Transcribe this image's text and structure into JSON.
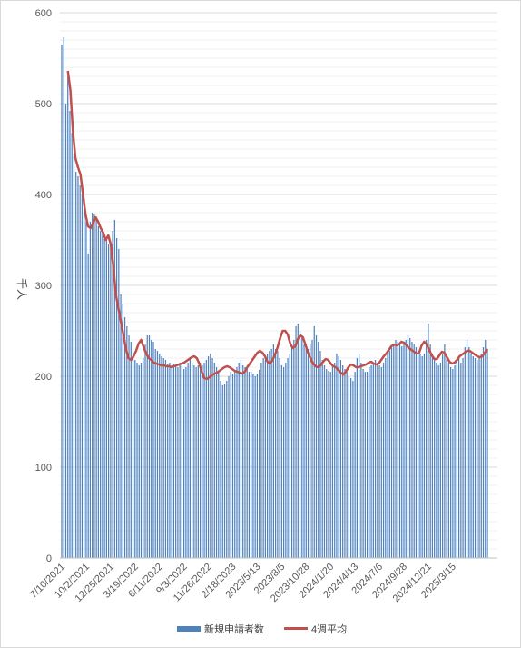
{
  "chart_data": {
    "type": "bar",
    "title": "",
    "xlabel": "",
    "ylabel": "千人",
    "ylim": [
      0,
      600
    ],
    "y_ticks": [
      0,
      100,
      200,
      300,
      400,
      500,
      600
    ],
    "x_tick_labels": [
      "7/10/2021",
      "10/2/2021",
      "12/25/2021",
      "3/19/2022",
      "6/11/2022",
      "9/3/2022",
      "11/26/2022",
      "2/18/2023",
      "2023/5/13",
      "2023/8/5",
      "2023/10/28",
      "2024/1/20",
      "2024/4/13",
      "2024/7/6",
      "2024/9/28",
      "2024/12/21",
      "2025/3/15"
    ],
    "gridlines": true,
    "legend_position": "bottom",
    "colors": {
      "bars": "#4F81BD",
      "line": "#C0504D"
    },
    "series": [
      {
        "name": "新規申請者数",
        "type": "bar",
        "values": [
          565,
          573,
          500,
          530,
          492,
          468,
          445,
          425,
          420,
          410,
          400,
          395,
          370,
          335,
          370,
          380,
          378,
          375,
          365,
          360,
          362,
          355,
          350,
          345,
          345,
          360,
          372,
          352,
          340,
          290,
          280,
          265,
          255,
          245,
          238,
          225,
          218,
          215,
          212,
          215,
          220,
          235,
          245,
          245,
          240,
          238,
          230,
          228,
          225,
          222,
          220,
          218,
          213,
          215,
          212,
          214,
          212,
          210,
          215,
          212,
          208,
          210,
          215,
          220,
          215,
          212,
          210,
          212,
          215,
          212,
          215,
          218,
          222,
          225,
          220,
          215,
          210,
          205,
          195,
          190,
          192,
          195,
          200,
          205,
          202,
          205,
          210,
          215,
          218,
          212,
          210,
          208,
          205,
          205,
          202,
          200,
          203,
          207,
          215,
          220,
          222,
          225,
          228,
          230,
          235,
          230,
          228,
          220,
          212,
          210,
          215,
          220,
          225,
          232,
          240,
          255,
          258,
          250,
          245,
          235,
          230,
          230,
          235,
          240,
          255,
          245,
          238,
          228,
          218,
          212,
          208,
          206,
          205,
          210,
          215,
          225,
          222,
          218,
          212,
          208,
          205,
          200,
          198,
          195,
          205,
          220,
          225,
          215,
          208,
          205,
          205,
          210,
          212,
          215,
          218,
          215,
          212,
          210,
          215,
          220,
          225,
          228,
          232,
          235,
          240,
          238,
          235,
          233,
          236,
          240,
          245,
          242,
          238,
          235,
          232,
          228,
          225,
          222,
          225,
          240,
          258,
          235,
          225,
          220,
          215,
          212,
          215,
          225,
          235,
          225,
          215,
          210,
          208,
          212,
          218,
          222,
          215,
          220,
          232,
          240,
          232,
          225,
          222,
          220,
          218,
          222,
          225,
          232,
          240,
          230
        ],
        "start_date": "2021-07-10",
        "interval_days": 7
      },
      {
        "name": "4週平均",
        "type": "line",
        "values": [
          536,
          515,
          470,
          440,
          430,
          422,
          400,
          378,
          365,
          363,
          368,
          375,
          370,
          363,
          358,
          350,
          355,
          345,
          320,
          290,
          275,
          260,
          245,
          230,
          220,
          218,
          222,
          228,
          236,
          240,
          232,
          225,
          220,
          218,
          215,
          214,
          213,
          212,
          212,
          211,
          211,
          210,
          211,
          212,
          213,
          214,
          215,
          217,
          219,
          221,
          222,
          220,
          214,
          205,
          198,
          197,
          199,
          201,
          203,
          204,
          206,
          208,
          210,
          211,
          210,
          208,
          206,
          205,
          204,
          203,
          205,
          210,
          214,
          218,
          222,
          226,
          228,
          226,
          222,
          216,
          214,
          218,
          224,
          232,
          242,
          250,
          250,
          246,
          236,
          231,
          233,
          241,
          245,
          243,
          235,
          226,
          220,
          214,
          211,
          210,
          212,
          216,
          219,
          218,
          214,
          211,
          210,
          207,
          204,
          202,
          205,
          210,
          213,
          212,
          210,
          210,
          211,
          212,
          213,
          215,
          216,
          214,
          213,
          214,
          218,
          222,
          225,
          229,
          233,
          235,
          234,
          235,
          238,
          237,
          234,
          231,
          229,
          227,
          225,
          226,
          234,
          238,
          235,
          229,
          223,
          219,
          219,
          223,
          227,
          226,
          221,
          216,
          214,
          215,
          218,
          222,
          224,
          226,
          228,
          228,
          226,
          224,
          222,
          221,
          222,
          226,
          230
        ]
      }
    ]
  }
}
